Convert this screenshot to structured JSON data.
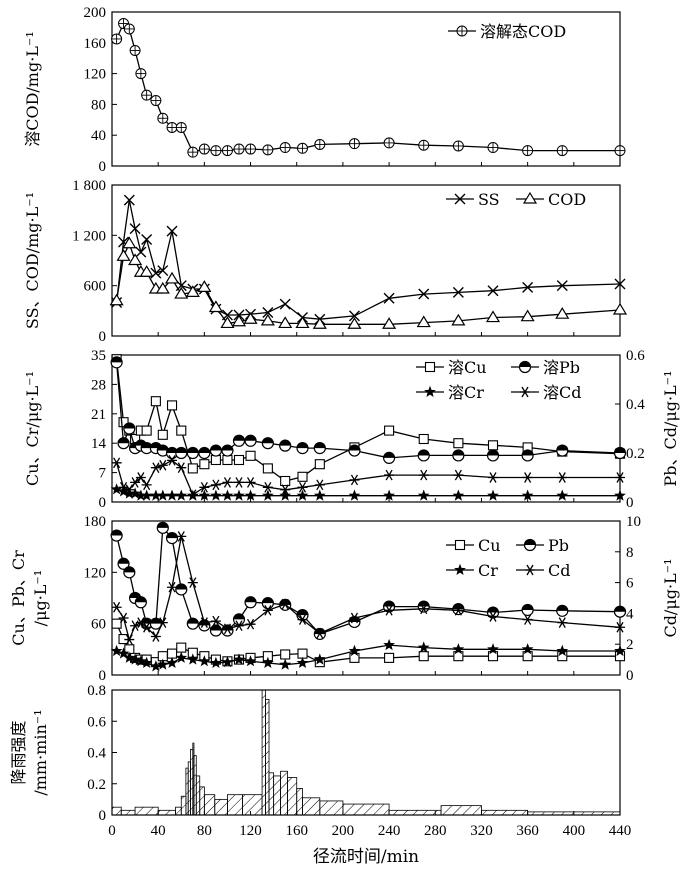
{
  "chart_data": [
    {
      "type": "line",
      "ylabel": "溶COD/mg·L⁻¹",
      "xlim": [
        0,
        440
      ],
      "ylim": [
        0,
        200
      ],
      "yticks": [
        0,
        40,
        80,
        120,
        160,
        200
      ],
      "ytick_labels": [
        "0",
        "40",
        "80",
        "120",
        "160",
        "200"
      ],
      "series": [
        {
          "name": "溶解态COD",
          "marker": "circle-plus",
          "x": [
            4,
            10,
            15,
            20,
            25,
            30,
            38,
            44,
            52,
            60,
            70,
            80,
            90,
            100,
            110,
            120,
            135,
            150,
            165,
            180,
            210,
            240,
            270,
            300,
            330,
            360,
            390,
            440
          ],
          "y": [
            165,
            185,
            178,
            150,
            120,
            92,
            85,
            62,
            50,
            50,
            18,
            22,
            20,
            20,
            22,
            22,
            21,
            24,
            23,
            28,
            29,
            30,
            27,
            26,
            24,
            20,
            20,
            20
          ]
        }
      ]
    },
    {
      "type": "line",
      "ylabel": "SS、COD/mg·L⁻¹",
      "xlim": [
        0,
        440
      ],
      "ylim": [
        0,
        1800
      ],
      "yticks": [
        0,
        600,
        1200,
        1800
      ],
      "ytick_labels": [
        "0",
        "600",
        "1 200",
        "1 800"
      ],
      "series": [
        {
          "name": "SS",
          "marker": "x",
          "x": [
            4,
            10,
            15,
            20,
            25,
            30,
            38,
            44,
            52,
            60,
            70,
            80,
            90,
            100,
            110,
            120,
            135,
            150,
            165,
            180,
            210,
            240,
            270,
            300,
            330,
            360,
            390,
            440
          ],
          "y": [
            400,
            1120,
            1620,
            1280,
            1000,
            1150,
            750,
            780,
            1250,
            600,
            560,
            560,
            320,
            250,
            250,
            260,
            280,
            380,
            220,
            200,
            240,
            450,
            500,
            520,
            540,
            580,
            600,
            620
          ]
        },
        {
          "name": "COD",
          "marker": "triangle",
          "x": [
            4,
            10,
            15,
            20,
            25,
            30,
            38,
            44,
            52,
            60,
            70,
            80,
            90,
            100,
            110,
            120,
            135,
            150,
            165,
            180,
            210,
            240,
            270,
            300,
            330,
            360,
            390,
            440
          ],
          "y": [
            420,
            950,
            1100,
            900,
            760,
            760,
            560,
            560,
            680,
            500,
            520,
            580,
            340,
            150,
            170,
            200,
            180,
            150,
            150,
            140,
            140,
            140,
            160,
            180,
            220,
            230,
            260,
            310
          ]
        }
      ]
    },
    {
      "type": "line",
      "ylabel": "Cu、Cr/μg·L⁻¹",
      "ylabel_right": "Pb、Cd/μg·L⁻¹",
      "xlim": [
        0,
        440
      ],
      "ylim": [
        0,
        35
      ],
      "ylim_right": [
        0,
        0.6
      ],
      "yticks": [
        0,
        7,
        14,
        21,
        28,
        35
      ],
      "ytick_labels": [
        "0",
        "7",
        "14",
        "21",
        "28",
        "35"
      ],
      "yticks_right": [
        0,
        0.2,
        0.4,
        0.6
      ],
      "ytick_labels_right": [
        "0",
        "0.2",
        "0.4",
        "0.6"
      ],
      "series": [
        {
          "name": "溶Cu",
          "marker": "square",
          "axis": "left",
          "x": [
            4,
            10,
            15,
            20,
            25,
            30,
            38,
            44,
            52,
            60,
            70,
            80,
            90,
            100,
            110,
            120,
            135,
            150,
            165,
            180,
            210,
            240,
            270,
            300,
            330,
            360,
            390,
            440
          ],
          "y": [
            34,
            19,
            17,
            15,
            17,
            17,
            24,
            16,
            23,
            17,
            8,
            9,
            10,
            10,
            10,
            11,
            8,
            5,
            6,
            9,
            13,
            17,
            15,
            14,
            13.5,
            13,
            12,
            11.5
          ]
        },
        {
          "name": "溶Pb",
          "marker": "half-circle",
          "axis": "right",
          "x": [
            4,
            10,
            15,
            20,
            25,
            30,
            38,
            44,
            52,
            60,
            70,
            80,
            90,
            100,
            110,
            120,
            135,
            150,
            165,
            180,
            210,
            240,
            270,
            300,
            330,
            360,
            390,
            440
          ],
          "y": [
            0.57,
            0.24,
            0.3,
            0.22,
            0.23,
            0.22,
            0.22,
            0.21,
            0.2,
            0.2,
            0.2,
            0.2,
            0.21,
            0.21,
            0.25,
            0.25,
            0.24,
            0.23,
            0.22,
            0.22,
            0.21,
            0.18,
            0.19,
            0.19,
            0.19,
            0.19,
            0.21,
            0.2
          ]
        },
        {
          "name": "溶Cr",
          "marker": "star",
          "axis": "left",
          "x": [
            4,
            10,
            15,
            20,
            25,
            30,
            38,
            44,
            52,
            60,
            70,
            80,
            90,
            100,
            110,
            120,
            135,
            150,
            165,
            180,
            210,
            240,
            270,
            300,
            330,
            360,
            390,
            440
          ],
          "y": [
            3,
            2.5,
            2,
            2,
            1.5,
            1.5,
            1.5,
            1.5,
            1.5,
            1.5,
            1.5,
            1.5,
            1.5,
            1.5,
            1.5,
            1.5,
            1.5,
            1.5,
            1.5,
            1.5,
            1.5,
            1.5,
            1.5,
            1.5,
            1.5,
            1.5,
            1.5,
            1.5
          ]
        },
        {
          "name": "溶Cd",
          "marker": "asterisk",
          "axis": "right",
          "x": [
            4,
            10,
            15,
            20,
            25,
            30,
            38,
            44,
            52,
            60,
            70,
            80,
            90,
            100,
            110,
            120,
            135,
            150,
            165,
            180,
            210,
            240,
            270,
            300,
            330,
            360,
            390,
            440
          ],
          "y": [
            0.16,
            0.06,
            0.05,
            0.08,
            0.1,
            0.07,
            0.14,
            0.15,
            0.17,
            0.14,
            0.03,
            0.06,
            0.07,
            0.08,
            0.08,
            0.08,
            0.06,
            0.05,
            0.06,
            0.07,
            0.09,
            0.11,
            0.11,
            0.11,
            0.1,
            0.1,
            0.1,
            0.1
          ]
        }
      ]
    },
    {
      "type": "line",
      "ylabel": "Cu、Pb、Cr /μg·L⁻¹",
      "ylabel_right": "Cd/μg·L⁻¹",
      "xlim": [
        0,
        440
      ],
      "ylim": [
        0,
        180
      ],
      "ylim_right": [
        0,
        10
      ],
      "yticks": [
        0,
        60,
        120,
        180
      ],
      "ytick_labels": [
        "0",
        "60",
        "120",
        "180"
      ],
      "yticks_right": [
        0,
        2,
        4,
        6,
        8,
        10
      ],
      "ytick_labels_right": [
        "0",
        "2",
        "4",
        "6",
        "8",
        "10"
      ],
      "series": [
        {
          "name": "Cu",
          "marker": "square",
          "axis": "left",
          "x": [
            4,
            10,
            15,
            20,
            25,
            30,
            38,
            44,
            52,
            60,
            70,
            80,
            90,
            100,
            110,
            120,
            135,
            150,
            165,
            180,
            210,
            240,
            270,
            300,
            330,
            360,
            390,
            440
          ],
          "y": [
            60,
            42,
            30,
            20,
            18,
            18,
            15,
            22,
            25,
            32,
            26,
            22,
            18,
            16,
            18,
            20,
            22,
            24,
            25,
            15,
            20,
            20,
            22,
            22,
            22,
            22,
            22,
            22
          ]
        },
        {
          "name": "Pb",
          "marker": "half-circle",
          "axis": "left",
          "x": [
            4,
            10,
            15,
            20,
            25,
            30,
            38,
            44,
            52,
            60,
            70,
            80,
            90,
            100,
            110,
            120,
            135,
            150,
            165,
            180,
            210,
            240,
            270,
            300,
            330,
            360,
            390,
            440
          ],
          "y": [
            163,
            130,
            120,
            90,
            85,
            60,
            60,
            172,
            160,
            100,
            60,
            58,
            52,
            52,
            65,
            85,
            84,
            82,
            70,
            48,
            62,
            80,
            80,
            77,
            73,
            76,
            75,
            74
          ]
        },
        {
          "name": "Cr",
          "marker": "star",
          "axis": "left",
          "x": [
            4,
            10,
            15,
            20,
            25,
            30,
            38,
            44,
            52,
            60,
            70,
            80,
            90,
            100,
            110,
            120,
            135,
            150,
            165,
            180,
            210,
            240,
            270,
            300,
            330,
            360,
            390,
            440
          ],
          "y": [
            28,
            25,
            20,
            18,
            16,
            14,
            10,
            12,
            14,
            20,
            18,
            16,
            14,
            15,
            18,
            16,
            14,
            12,
            14,
            18,
            28,
            35,
            32,
            30,
            30,
            30,
            28,
            28
          ]
        },
        {
          "name": "Cd",
          "marker": "asterisk",
          "axis": "right",
          "x": [
            4,
            10,
            15,
            20,
            25,
            30,
            38,
            44,
            52,
            60,
            70,
            80,
            90,
            100,
            110,
            120,
            135,
            150,
            165,
            180,
            210,
            240,
            270,
            300,
            330,
            360,
            390,
            440
          ],
          "y": [
            4.4,
            3.7,
            2.3,
            3.2,
            3.4,
            3.1,
            2.5,
            3.4,
            5.7,
            9,
            6,
            3.4,
            3.5,
            3,
            3.2,
            3.3,
            4.2,
            4.6,
            3.6,
            2.7,
            3.7,
            4.2,
            4.3,
            4.2,
            3.8,
            3.6,
            3.4,
            3.1
          ]
        }
      ]
    },
    {
      "type": "bar",
      "ylabel": "降雨强度 /mm·min⁻¹",
      "xlabel": "径流时间/min",
      "xlim": [
        0,
        440
      ],
      "ylim": [
        0,
        0.8
      ],
      "yticks": [
        0,
        0.2,
        0.4,
        0.6,
        0.8
      ],
      "ytick_labels": [
        "0",
        "0.2",
        "0.4",
        "0.6",
        "0.8"
      ],
      "xticks": [
        0,
        40,
        80,
        120,
        160,
        200,
        240,
        280,
        320,
        360,
        400,
        440
      ],
      "xtick_labels": [
        "0",
        "40",
        "80",
        "120",
        "160",
        "200",
        "240",
        "280",
        "320",
        "360",
        "400",
        "440"
      ],
      "bar_hatch": "diagonal",
      "bins": [
        [
          0,
          8,
          0.05
        ],
        [
          8,
          20,
          0.03
        ],
        [
          20,
          40,
          0.05
        ],
        [
          40,
          55,
          0.03
        ],
        [
          55,
          60,
          0.05
        ],
        [
          60,
          64,
          0.12
        ],
        [
          64,
          66,
          0.3
        ],
        [
          66,
          68,
          0.34
        ],
        [
          68,
          70,
          0.42
        ],
        [
          70,
          71,
          0.46
        ],
        [
          71,
          73,
          0.38
        ],
        [
          73,
          76,
          0.25
        ],
        [
          76,
          80,
          0.18
        ],
        [
          80,
          89,
          0.13
        ],
        [
          89,
          100,
          0.1
        ],
        [
          100,
          113,
          0.13
        ],
        [
          113,
          130,
          0.13
        ],
        [
          130,
          133,
          0.8
        ],
        [
          133,
          136,
          0.74
        ],
        [
          136,
          140,
          0.27
        ],
        [
          140,
          146,
          0.25
        ],
        [
          146,
          152,
          0.28
        ],
        [
          152,
          160,
          0.24
        ],
        [
          160,
          165,
          0.17
        ],
        [
          165,
          180,
          0.11
        ],
        [
          180,
          200,
          0.09
        ],
        [
          200,
          240,
          0.07
        ],
        [
          240,
          285,
          0.03
        ],
        [
          285,
          320,
          0.06
        ],
        [
          320,
          360,
          0.03
        ],
        [
          360,
          440,
          0.02
        ]
      ]
    }
  ]
}
